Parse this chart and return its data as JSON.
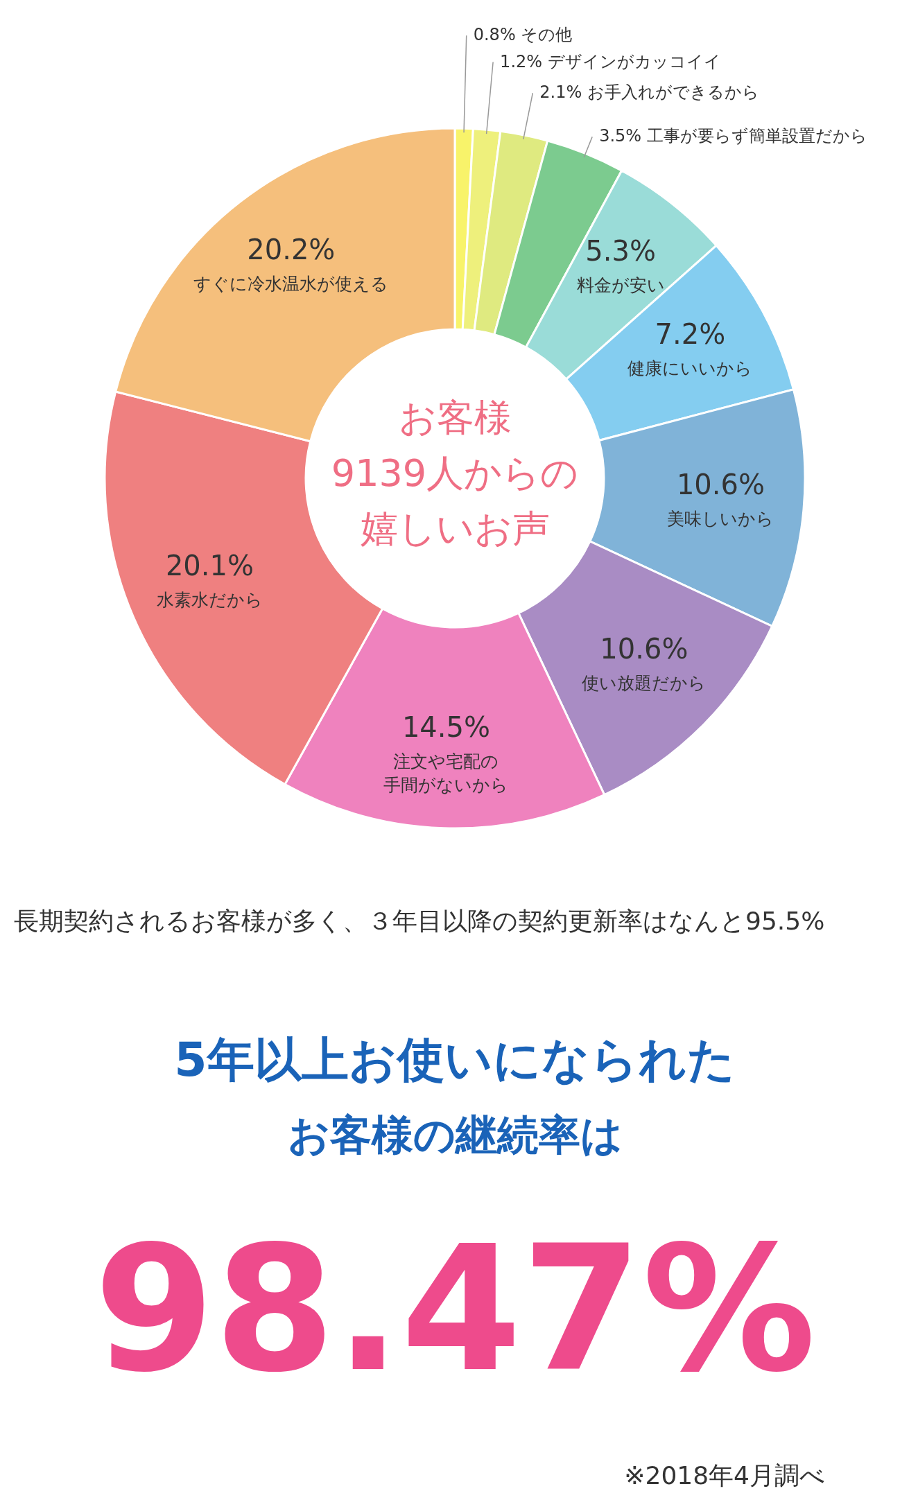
{
  "chart_data": {
    "type": "donut",
    "categories": [
      "その他",
      "デザインがカッコイイ",
      "お手入れができるから",
      "工事が要らず簡単設置だから",
      "料金が安い",
      "健康にいいから",
      "美味しいから",
      "使い放題だから",
      "注文や宅配の手間がないから",
      "水素水だから",
      "すぐに冷水温水が使える"
    ],
    "values": [
      0.8,
      1.2,
      2.1,
      3.5,
      5.3,
      7.2,
      10.6,
      10.6,
      14.5,
      20.1,
      20.2
    ],
    "value_labels": [
      "0.8%",
      "1.2%",
      "2.1%",
      "3.5%",
      "5.3%",
      "7.2%",
      "10.6%",
      "10.6%",
      "14.5%",
      "20.1%",
      "20.2%"
    ],
    "colors": [
      "#f8f36a",
      "#eef07c",
      "#dfea80",
      "#7ccb8f",
      "#9adcd8",
      "#84cdf0",
      "#80b3d8",
      "#a98cc4",
      "#ef82be",
      "#ef8080",
      "#f5bf7c"
    ],
    "annotations": [
      "お客様",
      "9139人からの",
      "嬉しいお声",
      "長期契約されるお客様が多く、３年目以降の契約更新率はなんと95.5%",
      "5年以上お使いになられた",
      "お客様の継続率は",
      "98.47%",
      "※2018年4月調べ"
    ]
  }
}
